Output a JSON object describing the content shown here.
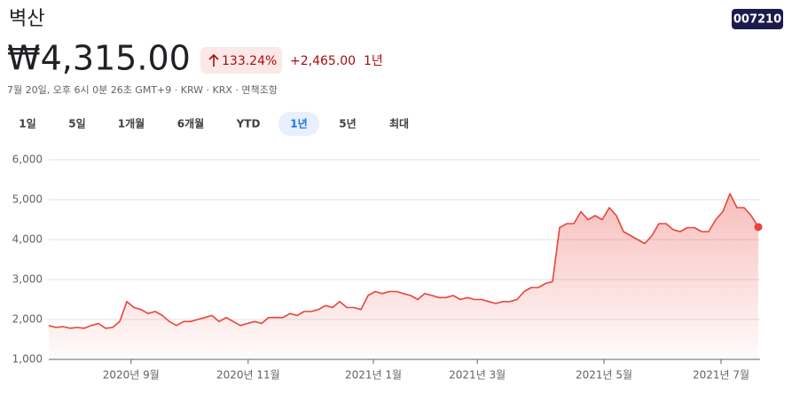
{
  "header": {
    "title": "벽산",
    "ticker": "007210",
    "price": "₩4,315.00",
    "change_percent": "133.24%",
    "change_value": "+2,465.00",
    "change_period": "1년",
    "subtitle": "7월 20일, 오후 6시 0분 26초 GMT+9 · KRW · KRX · 면책조항"
  },
  "tabs": {
    "items": [
      "1일",
      "5일",
      "1개월",
      "6개월",
      "YTD",
      "1년",
      "5년",
      "최대"
    ],
    "selected": 5
  },
  "chart_data": {
    "type": "area-line",
    "x": [
      0,
      1,
      2,
      3,
      4,
      5,
      6,
      7,
      8,
      9,
      10,
      11,
      12,
      13,
      14,
      15,
      16,
      17,
      18,
      19,
      20,
      21,
      22,
      23,
      24,
      25,
      26,
      27,
      28,
      29,
      30,
      31,
      32,
      33,
      34,
      35,
      36,
      37,
      38,
      39,
      40,
      41,
      42,
      43,
      44,
      45,
      46,
      47,
      48,
      49,
      50,
      51,
      52,
      53,
      54,
      55,
      56,
      57,
      58,
      59,
      60,
      61,
      62,
      63,
      64,
      65,
      66,
      67,
      68,
      69,
      70,
      71,
      72,
      73,
      74,
      75,
      76,
      77,
      78,
      79,
      80,
      81,
      82,
      83,
      84,
      85,
      86,
      87,
      88,
      89,
      90,
      91,
      92,
      93,
      94,
      95,
      96,
      97,
      98,
      99,
      100
    ],
    "series": [
      {
        "color": "#e8453c",
        "values": [
          1850,
          1800,
          1820,
          1780,
          1800,
          1780,
          1850,
          1900,
          1780,
          1800,
          1950,
          2450,
          2300,
          2250,
          2150,
          2200,
          2100,
          1950,
          1850,
          1950,
          1950,
          2000,
          2050,
          2100,
          1950,
          2050,
          1950,
          1850,
          1900,
          1950,
          1900,
          2050,
          2050,
          2050,
          2150,
          2100,
          2200,
          2200,
          2250,
          2350,
          2300,
          2450,
          2300,
          2300,
          2250,
          2600,
          2700,
          2650,
          2700,
          2700,
          2650,
          2600,
          2500,
          2650,
          2600,
          2550,
          2550,
          2600,
          2500,
          2550,
          2500,
          2500,
          2450,
          2400,
          2450,
          2450,
          2500,
          2700,
          2800,
          2800,
          2900,
          2950,
          4300,
          4400,
          4400,
          4700,
          4500,
          4600,
          4500,
          4800,
          4600,
          4200,
          4100,
          4000,
          3900,
          4100,
          4400,
          4400,
          4250,
          4200,
          4300,
          4300,
          4200,
          4200,
          4500,
          4700,
          5150,
          4800,
          4800,
          4600,
          4315
        ]
      }
    ],
    "xlim": [
      0,
      100
    ],
    "xticks": [
      {
        "value": 11.6,
        "label": "2020년 9월"
      },
      {
        "value": 28.1,
        "label": "2020년 11월"
      },
      {
        "value": 45.75,
        "label": "2021년 1월"
      },
      {
        "value": 60.4,
        "label": "2021년 3월"
      },
      {
        "value": 78.25,
        "label": "2021년 5월"
      },
      {
        "value": 94.75,
        "label": "2021년 7월"
      }
    ],
    "ylim": [
      1000,
      6000
    ],
    "yticks": [
      {
        "value": 1000,
        "label": "1,000"
      },
      {
        "value": 2000,
        "label": "2,000"
      },
      {
        "value": 3000,
        "label": "3,000"
      },
      {
        "value": 4000,
        "label": "4,000"
      },
      {
        "value": 5000,
        "label": "5,000"
      },
      {
        "value": 6000,
        "label": "6,000"
      }
    ],
    "grid": true
  }
}
